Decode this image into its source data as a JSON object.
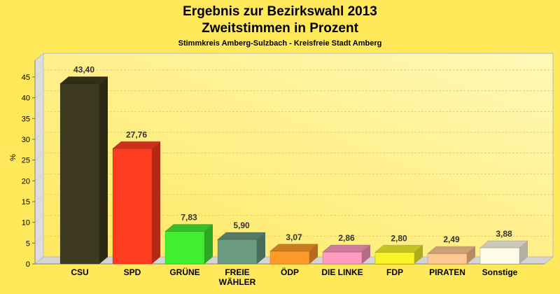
{
  "chart_data": {
    "type": "bar",
    "title": "Ergebnis zur Bezirkswahl 2013",
    "title2": "Zweitstimmen in Prozent",
    "subtitle": "Stimmkreis Amberg-Sulzbach - Kreisfreie Stadt Amberg",
    "ylabel": "%",
    "ylim": [
      0,
      49
    ],
    "yticks": [
      0,
      5,
      10,
      15,
      20,
      25,
      30,
      35,
      40,
      45
    ],
    "grid": true,
    "categories": [
      "CSU",
      "SPD",
      "GRÜNE",
      "FREIE WÄHLER",
      "ÖDP",
      "DIE LINKE",
      "FDP",
      "PIRATEN",
      "Sonstige"
    ],
    "category_lines": [
      [
        "CSU"
      ],
      [
        "SPD"
      ],
      [
        "GRÜNE"
      ],
      [
        "FREIE",
        "WÄHLER"
      ],
      [
        "ÖDP"
      ],
      [
        "DIE LINKE"
      ],
      [
        "FDP"
      ],
      [
        "PIRATEN"
      ],
      [
        "Sonstige"
      ]
    ],
    "values": [
      43.4,
      27.76,
      7.83,
      5.9,
      3.07,
      2.86,
      2.8,
      2.49,
      3.88
    ],
    "labels": [
      "43,40",
      "27,76",
      "7,83",
      "5,90",
      "3,07",
      "2,86",
      "2,80",
      "2,49",
      "3,88"
    ],
    "colors": [
      "#3d3a20",
      "#ff3c20",
      "#40f030",
      "#6a9a80",
      "#ff9a28",
      "#ff9ac0",
      "#f8f428",
      "#ffc890",
      "#fffbe8"
    ]
  }
}
